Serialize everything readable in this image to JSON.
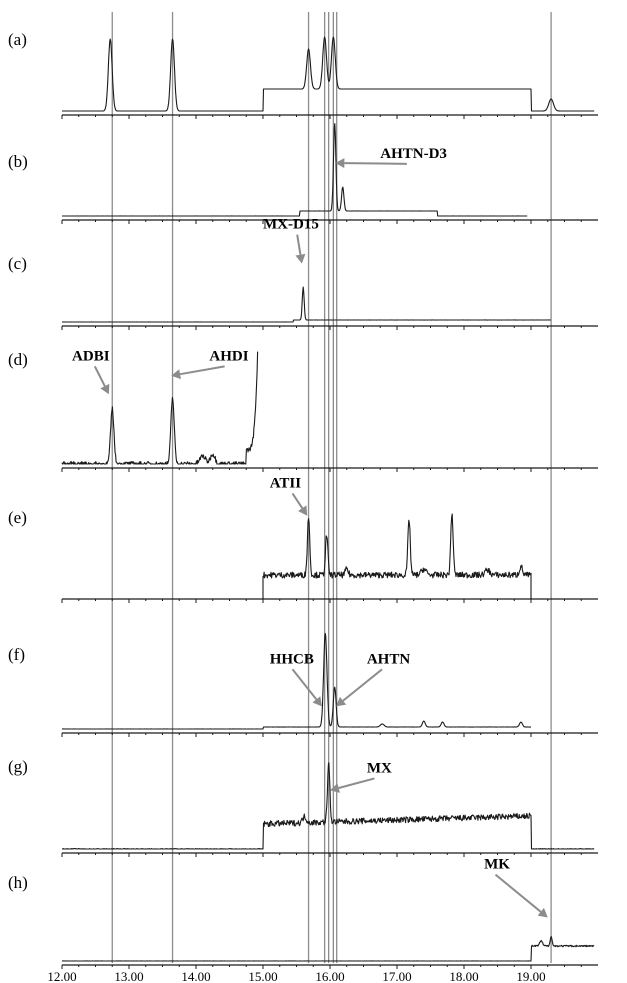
{
  "chart_data": {
    "type": "line",
    "layout": "stacked chromatograms",
    "x_domain": [
      12.0,
      20.0
    ],
    "x_ticks": [
      "12.00",
      "13.00",
      "14.00",
      "15.00",
      "16.00",
      "17.00",
      "18.00",
      "19.00"
    ],
    "reference_lines_x": [
      12.75,
      13.65,
      15.68,
      15.92,
      15.98,
      16.05,
      16.1,
      19.3
    ],
    "panels": [
      {
        "label": "(a)",
        "baseline": {
          "start": 12.0,
          "end": 19.95
        },
        "steps": [
          {
            "x0": 15.0,
            "x1": 19.0,
            "height": 22
          }
        ],
        "peaks": [
          {
            "x": 12.72,
            "height": 72,
            "width": 0.04
          },
          {
            "x": 13.65,
            "height": 72,
            "width": 0.04
          },
          {
            "x": 15.68,
            "height": 40,
            "width": 0.04
          },
          {
            "x": 15.92,
            "height": 52,
            "width": 0.04
          },
          {
            "x": 16.05,
            "height": 52,
            "width": 0.04
          },
          {
            "x": 19.3,
            "height": 12,
            "width": 0.05
          }
        ],
        "noise": 0.3,
        "annotations": []
      },
      {
        "label": "(b)",
        "baseline": {
          "start": 12.0,
          "end": 18.95
        },
        "steps": [
          {
            "x0": 15.55,
            "x1": 17.6,
            "height": 5
          }
        ],
        "peaks": [
          {
            "x": 16.07,
            "height": 88,
            "width": 0.025
          },
          {
            "x": 16.19,
            "height": 24,
            "width": 0.025
          }
        ],
        "noise": 0.4,
        "annotations": [
          {
            "text": "AHTN-D3",
            "tip_x": 16.08,
            "tip_frac": 0.6,
            "label_x": 16.75,
            "label_frac": 0.95
          }
        ]
      },
      {
        "label": "(c)",
        "baseline": {
          "start": 12.0,
          "end": 19.3
        },
        "steps": [
          {
            "x0": 15.45,
            "x1": 19.3,
            "height": 2
          }
        ],
        "peaks": [
          {
            "x": 15.6,
            "height": 33,
            "width": 0.02
          }
        ],
        "noise": 0.4,
        "annotations": [
          {
            "text": "MX-D15",
            "tip_x": 15.58,
            "tip_frac": 0.65,
            "label_x": 15.0,
            "label_frac": 1.55
          }
        ]
      },
      {
        "label": "(d)",
        "baseline": {
          "start": 12.0,
          "end": 14.92
        },
        "steps": [],
        "peaks": [
          {
            "x": 12.75,
            "height": 55,
            "width": 0.035
          },
          {
            "x": 13.65,
            "height": 66,
            "width": 0.035
          },
          {
            "x": 14.1,
            "height": 8,
            "width": 0.06
          },
          {
            "x": 14.25,
            "height": 10,
            "width": 0.05
          }
        ],
        "rise": {
          "x0": 14.75,
          "x1": 14.92,
          "from": 14,
          "to": 112
        },
        "noise": 2.5,
        "annotations": [
          {
            "text": "ADBI",
            "tip_x": 12.7,
            "tip_frac": 0.6,
            "label_x": 12.15,
            "label_frac": 1.35
          },
          {
            "text": "AHDI",
            "tip_x": 13.63,
            "tip_frac": 0.75,
            "label_x": 14.2,
            "label_frac": 1.35
          }
        ]
      },
      {
        "label": "(e)",
        "baseline": {
          "start": 15.0,
          "end": 19.0
        },
        "steps": [],
        "level": 20,
        "peaks": [
          {
            "x": 15.68,
            "height": 58,
            "width": 0.025
          },
          {
            "x": 15.95,
            "height": 40,
            "width": 0.025
          },
          {
            "x": 16.25,
            "height": 6,
            "width": 0.03
          },
          {
            "x": 17.18,
            "height": 56,
            "width": 0.025
          },
          {
            "x": 17.4,
            "height": 6,
            "width": 0.05
          },
          {
            "x": 17.82,
            "height": 62,
            "width": 0.025
          },
          {
            "x": 18.35,
            "height": 5,
            "width": 0.05
          },
          {
            "x": 18.85,
            "height": 9,
            "width": 0.03
          }
        ],
        "noise": 3,
        "annotations": [
          {
            "text": "ATII",
            "tip_x": 15.66,
            "tip_frac": 0.7,
            "label_x": 15.1,
            "label_frac": 1.45
          }
        ]
      },
      {
        "label": "(f)",
        "baseline": {
          "start": 12.0,
          "end": 19.0
        },
        "steps": [
          {
            "x0": 15.0,
            "x1": 19.0,
            "height": 2
          }
        ],
        "peaks": [
          {
            "x": 15.93,
            "height": 94,
            "width": 0.035
          },
          {
            "x": 16.07,
            "height": 40,
            "width": 0.03
          },
          {
            "x": 16.78,
            "height": 3,
            "width": 0.04
          },
          {
            "x": 17.4,
            "height": 6,
            "width": 0.03
          },
          {
            "x": 17.68,
            "height": 5,
            "width": 0.03
          },
          {
            "x": 18.85,
            "height": 5,
            "width": 0.03
          }
        ],
        "noise": 0.6,
        "annotations": [
          {
            "text": "HHCB",
            "tip_x": 15.88,
            "tip_frac": 0.22,
            "label_x": 15.1,
            "label_frac": 0.85
          },
          {
            "text": "AHTN",
            "tip_x": 16.09,
            "tip_frac": 0.22,
            "label_x": 16.55,
            "label_frac": 0.85
          }
        ]
      },
      {
        "label": "(g)",
        "baseline": {
          "start": 12.0,
          "end": 19.95
        },
        "steps": [],
        "block": {
          "x0": 15.0,
          "x1": 19.0,
          "level": 25,
          "slope": 8
        },
        "peaks": [
          {
            "x": 15.98,
            "height": 58,
            "width": 0.025
          },
          {
            "x": 15.62,
            "height": 6,
            "width": 0.04
          }
        ],
        "noise": 3,
        "annotations": [
          {
            "text": "MX",
            "tip_x": 16.0,
            "tip_frac": 0.58,
            "label_x": 16.55,
            "label_frac": 1.12
          }
        ]
      },
      {
        "label": "(h)",
        "baseline": {
          "start": 12.0,
          "end": 19.95
        },
        "steps": [],
        "block": {
          "x0": 19.0,
          "x1": 19.95,
          "level": 15,
          "slope": 0
        },
        "peaks": [
          {
            "x": 19.3,
            "height": 10,
            "width": 0.02
          },
          {
            "x": 19.15,
            "height": 5,
            "width": 0.03
          }
        ],
        "noise": 0.8,
        "annotations": [
          {
            "text": "MK",
            "tip_x": 19.25,
            "tip_frac": 0.5,
            "label_x": 18.3,
            "label_frac": 1.55
          }
        ]
      }
    ]
  }
}
